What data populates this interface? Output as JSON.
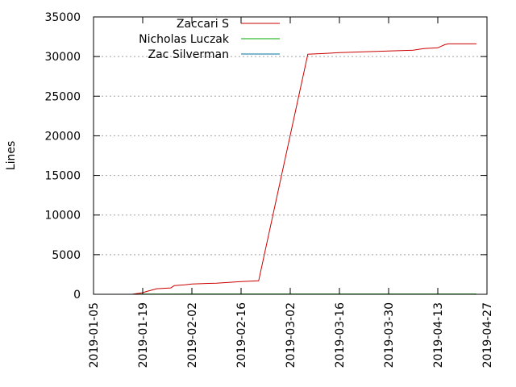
{
  "chart_data": {
    "type": "line",
    "title": "",
    "xlabel": "",
    "ylabel": "Lines",
    "x_type": "date",
    "xlim": [
      "2019-01-05",
      "2019-04-27"
    ],
    "ylim": [
      0,
      35000
    ],
    "x_ticks": [
      "2019-01-05",
      "2019-01-19",
      "2019-02-02",
      "2019-02-16",
      "2019-03-02",
      "2019-03-16",
      "2019-03-30",
      "2019-04-13",
      "2019-04-27"
    ],
    "y_ticks": [
      0,
      5000,
      10000,
      15000,
      20000,
      25000,
      30000,
      35000
    ],
    "grid": true,
    "legend_position": "top-left",
    "series": [
      {
        "name": "Zaccari S",
        "color": "#cc0000",
        "points": [
          [
            "2019-01-16",
            0
          ],
          [
            "2019-01-19",
            200
          ],
          [
            "2019-01-20",
            350
          ],
          [
            "2019-01-23",
            700
          ],
          [
            "2019-01-27",
            800
          ],
          [
            "2019-01-28",
            1100
          ],
          [
            "2019-01-31",
            1200
          ],
          [
            "2019-02-02",
            1300
          ],
          [
            "2019-02-09",
            1400
          ],
          [
            "2019-02-16",
            1600
          ],
          [
            "2019-02-21",
            1700
          ],
          [
            "2019-03-07",
            30300
          ],
          [
            "2019-03-12",
            30400
          ],
          [
            "2019-03-16",
            30500
          ],
          [
            "2019-03-23",
            30600
          ],
          [
            "2019-03-30",
            30700
          ],
          [
            "2019-04-06",
            30800
          ],
          [
            "2019-04-09",
            31000
          ],
          [
            "2019-04-13",
            31100
          ],
          [
            "2019-04-15",
            31500
          ],
          [
            "2019-04-16",
            31600
          ],
          [
            "2019-04-24",
            31600
          ]
        ]
      },
      {
        "name": "Nicholas Luczak",
        "color": "#00aa00",
        "points": [
          [
            "2019-01-16",
            0
          ],
          [
            "2019-01-19",
            30
          ],
          [
            "2019-04-24",
            40
          ]
        ]
      },
      {
        "name": "Zac Silverman",
        "color": "#0070a0",
        "points": [
          [
            "2019-01-16",
            0
          ],
          [
            "2019-04-24",
            0
          ]
        ]
      }
    ]
  }
}
